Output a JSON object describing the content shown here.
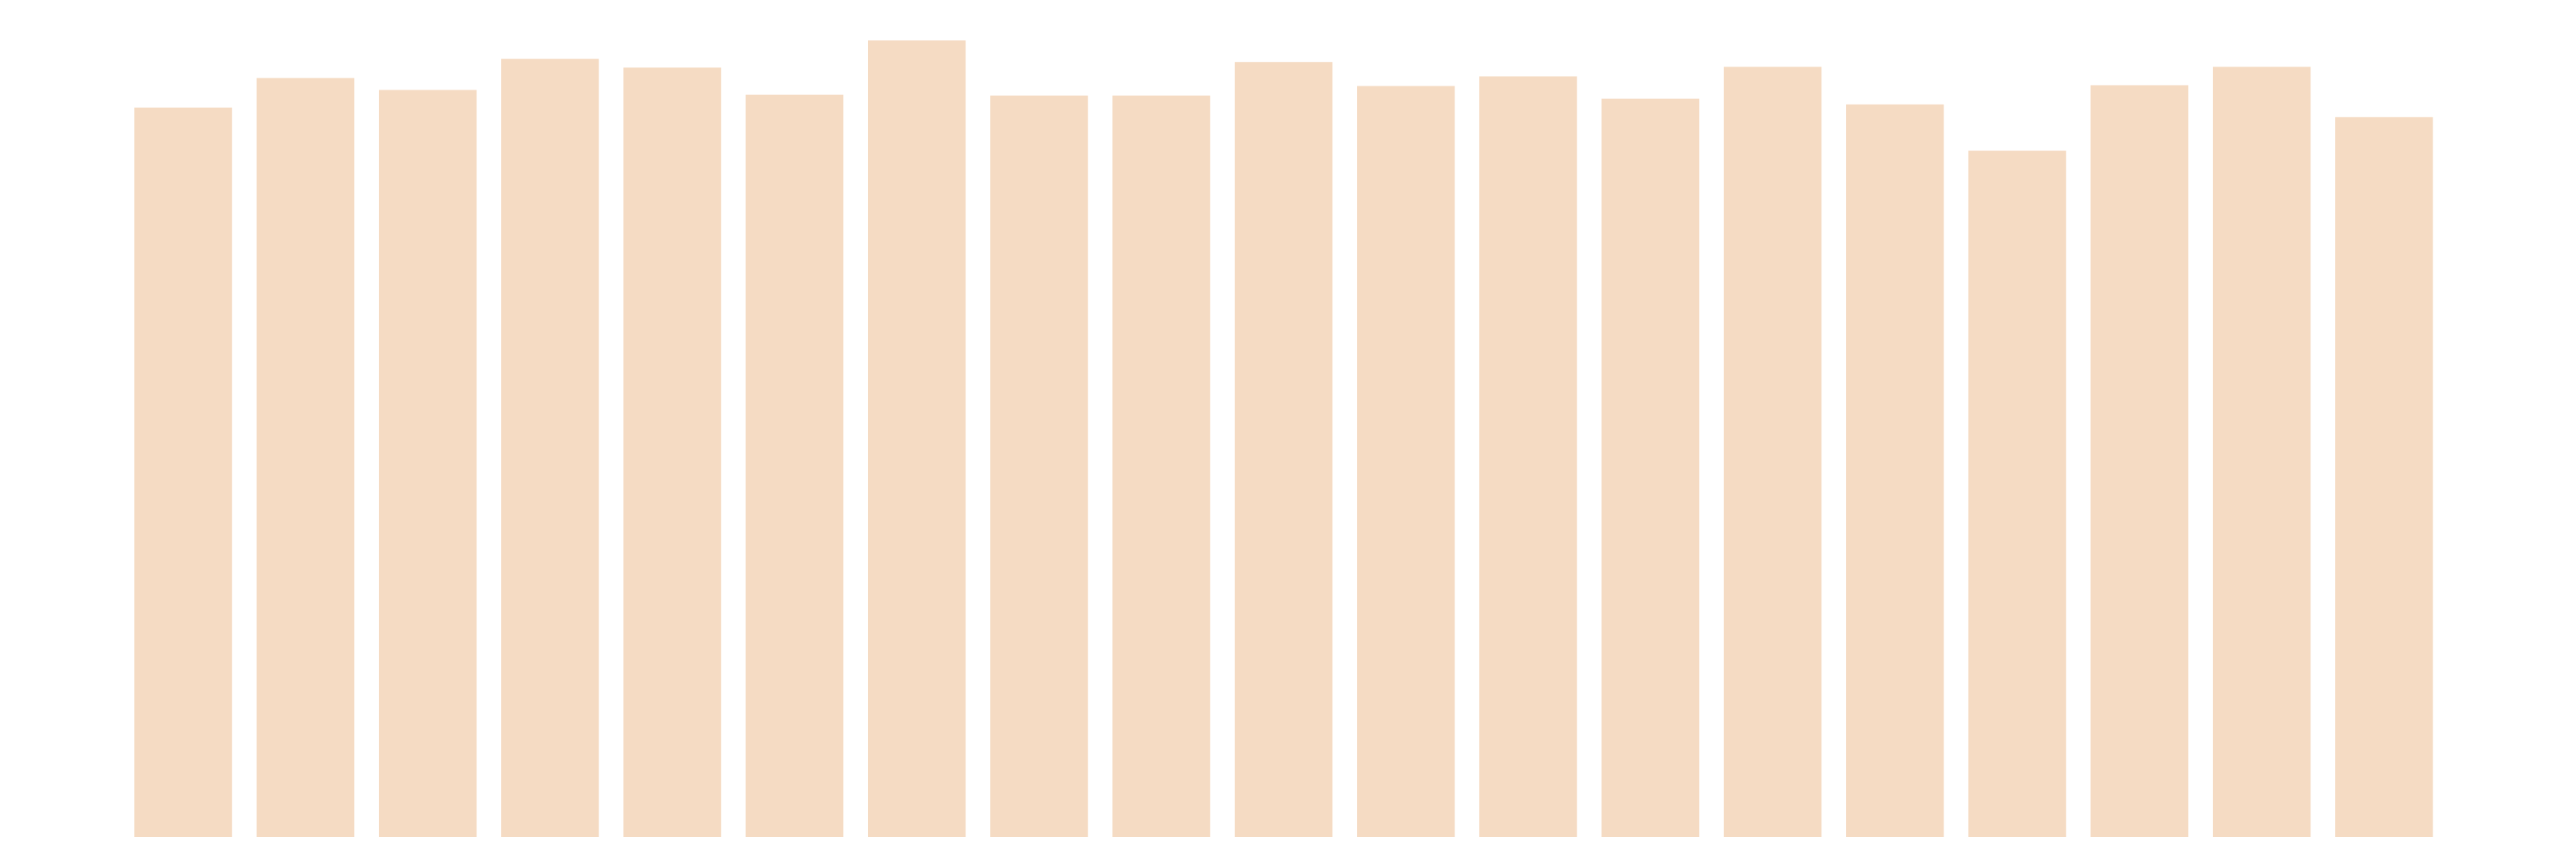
{
  "chart_data": {
    "type": "bar",
    "categories": [
      "",
      "",
      "",
      "",
      "",
      "",
      "",
      "",
      "",
      "",
      "",
      "",
      "",
      "",
      "",
      "",
      "",
      "",
      ""
    ],
    "values": [
      0.913,
      0.95,
      0.935,
      0.974,
      0.963,
      0.929,
      0.997,
      0.928,
      0.928,
      0.97,
      0.94,
      0.952,
      0.924,
      0.964,
      0.917,
      0.859,
      0.941,
      0.964,
      0.901
    ],
    "title": "",
    "xlabel": "",
    "ylabel": "",
    "ylim": [
      0,
      1.0
    ],
    "grid": false,
    "legend": "none",
    "bar_color": "#f5dbc3"
  }
}
